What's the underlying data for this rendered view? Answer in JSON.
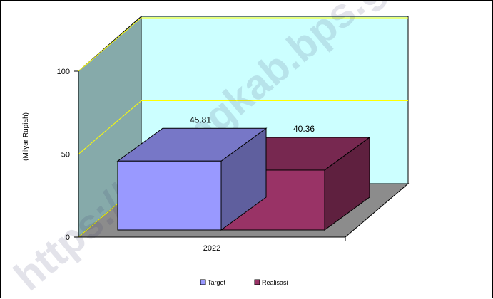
{
  "watermark": "https://batangkab.bps.go.id",
  "chart_data": {
    "type": "bar",
    "categories": [
      "2022"
    ],
    "series": [
      {
        "name": "Target",
        "values": [
          45.81
        ]
      },
      {
        "name": "Realisasi",
        "values": [
          40.36
        ]
      }
    ],
    "data_labels": [
      "45.81",
      "40.36"
    ],
    "title": "",
    "xlabel": "",
    "ylabel": "(Milyar Rupiah)",
    "ylim": [
      0,
      100
    ],
    "yticks": [
      0,
      50,
      100
    ],
    "grid": true,
    "three_d": true,
    "legend": "bottom-center",
    "colors": {
      "target": "#9999ff",
      "realisasi": "#993366",
      "back_wall": "#ccffff",
      "side_wall": "#86aaaa",
      "floor": "#8c8c8c",
      "gridline": "#ffff00"
    }
  }
}
